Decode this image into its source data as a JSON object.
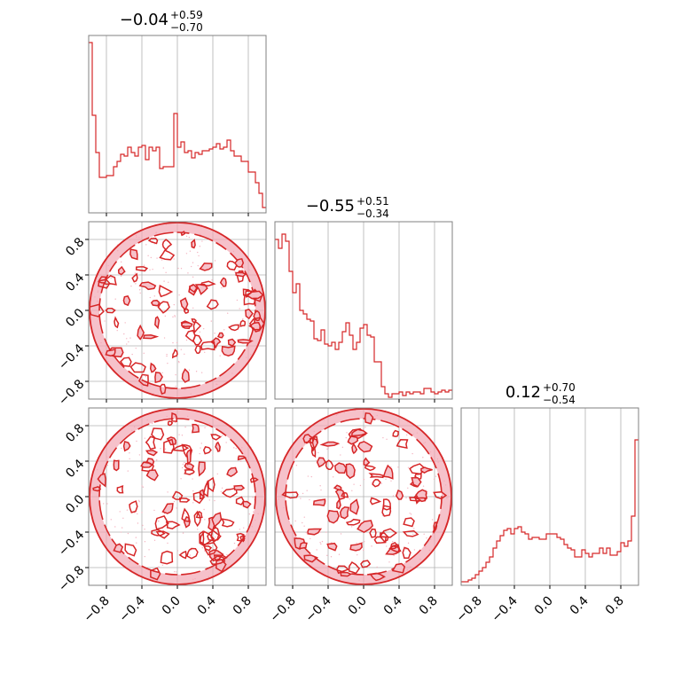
{
  "chart_data": {
    "type": "corner",
    "color": "#d62728",
    "grid": true,
    "axis_range": [
      -1,
      1
    ],
    "tick_values": [
      -0.8,
      -0.4,
      0.0,
      0.4,
      0.8
    ],
    "tick_labels": [
      "−0.8",
      "−0.4",
      "0.0",
      "0.4",
      "0.8"
    ],
    "titles": [
      {
        "value": "−0.04",
        "upper": "+0.59",
        "lower": "−0.70"
      },
      {
        "value": "−0.55",
        "upper": "+0.51",
        "lower": "−0.34"
      },
      {
        "value": "0.12",
        "upper": "+0.70",
        "lower": "−0.54"
      }
    ],
    "histograms": [
      {
        "bin_range": [
          -1,
          1
        ],
        "values": [
          0.96,
          0.55,
          0.34,
          0.2,
          0.2,
          0.21,
          0.21,
          0.26,
          0.29,
          0.33,
          0.32,
          0.37,
          0.34,
          0.32,
          0.37,
          0.38,
          0.3,
          0.37,
          0.35,
          0.37,
          0.25,
          0.26,
          0.26,
          0.26,
          0.56,
          0.37,
          0.4,
          0.34,
          0.35,
          0.31,
          0.34,
          0.33,
          0.35,
          0.35,
          0.36,
          0.37,
          0.39,
          0.36,
          0.37,
          0.41,
          0.35,
          0.32,
          0.32,
          0.29,
          0.29,
          0.23,
          0.23,
          0.17,
          0.11,
          0.03
        ]
      },
      {
        "bin_range": [
          -1,
          1
        ],
        "values": [
          0.9,
          0.85,
          0.93,
          0.89,
          0.72,
          0.6,
          0.65,
          0.5,
          0.48,
          0.45,
          0.44,
          0.34,
          0.33,
          0.39,
          0.31,
          0.3,
          0.32,
          0.28,
          0.32,
          0.38,
          0.43,
          0.36,
          0.28,
          0.32,
          0.4,
          0.42,
          0.36,
          0.35,
          0.21,
          0.21,
          0.07,
          0.03,
          0.01,
          0.03,
          0.03,
          0.04,
          0.02,
          0.04,
          0.03,
          0.04,
          0.04,
          0.03,
          0.06,
          0.06,
          0.04,
          0.03,
          0.04,
          0.05,
          0.04,
          0.05
        ]
      },
      {
        "bin_range": [
          -1,
          1
        ],
        "values": [
          0.02,
          0.02,
          0.03,
          0.04,
          0.06,
          0.08,
          0.1,
          0.13,
          0.16,
          0.21,
          0.25,
          0.28,
          0.31,
          0.32,
          0.29,
          0.32,
          0.33,
          0.3,
          0.29,
          0.26,
          0.27,
          0.27,
          0.26,
          0.26,
          0.29,
          0.29,
          0.29,
          0.27,
          0.26,
          0.23,
          0.21,
          0.2,
          0.16,
          0.16,
          0.2,
          0.18,
          0.16,
          0.18,
          0.18,
          0.21,
          0.18,
          0.21,
          0.17,
          0.17,
          0.19,
          0.24,
          0.22,
          0.25,
          0.39,
          0.82
        ]
      }
    ],
    "pairs": [
      {
        "row": 1,
        "col": 0,
        "description_region": "disk",
        "x_range": [
          -1,
          1
        ],
        "y_range": [
          -1,
          1
        ]
      },
      {
        "row": 2,
        "col": 0,
        "description_region": "disk",
        "x_range": [
          -1,
          1
        ],
        "y_range": [
          -1,
          1
        ]
      },
      {
        "row": 2,
        "col": 1,
        "description_region": "disk",
        "x_range": [
          -1,
          1
        ],
        "y_range": [
          -1,
          1
        ]
      }
    ]
  }
}
